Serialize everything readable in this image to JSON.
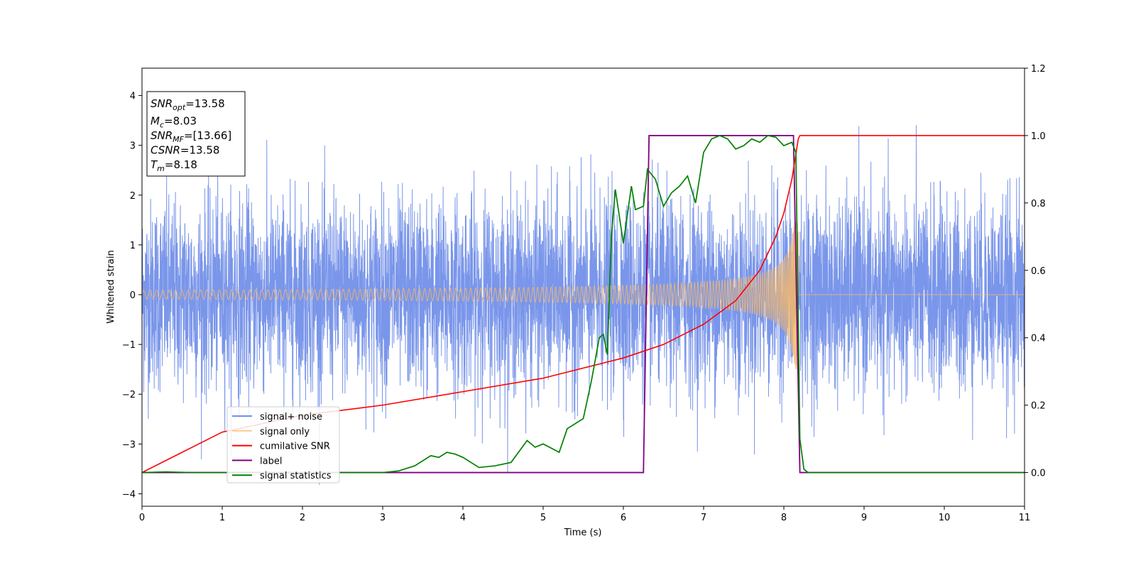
{
  "chart_data": {
    "type": "line",
    "xlabel": "Time (s)",
    "ylabel": "Whitened strain",
    "xlim": [
      0,
      11
    ],
    "ylim": [
      -4.25,
      4.55
    ],
    "y2lim": [
      -0.1,
      1.2
    ],
    "xticks": [
      0,
      1,
      2,
      3,
      4,
      5,
      6,
      7,
      8,
      9,
      10,
      11
    ],
    "yticks": [
      -4,
      -3,
      -2,
      -1,
      0,
      1,
      2,
      3,
      4
    ],
    "y2ticks": [
      "0.0",
      "0.2",
      "0.4",
      "0.6",
      "0.8",
      "1.0",
      "1.2"
    ],
    "legend_position": "lower-left",
    "annotation": {
      "lines": [
        {
          "var": "SNR",
          "sub": "opt",
          "value": "=13.58"
        },
        {
          "var": "M",
          "sub": "c",
          "value": "=8.03"
        },
        {
          "var": "SNR",
          "sub": "MF",
          "value": "=[13.66]"
        },
        {
          "var": "CSNR",
          "sub": "",
          "value": "=13.58"
        },
        {
          "var": "T",
          "sub": "m",
          "value": "=8.18"
        }
      ]
    },
    "series": [
      {
        "name": "signal+ noise",
        "color": "#4169e1",
        "axis": "left",
        "description_noise_std": 0.95,
        "x_range": [
          0,
          11
        ]
      },
      {
        "name": "signal only",
        "color": "#f5b96b",
        "axis": "left",
        "chirp_end_time": 8.18,
        "chirp_peak_amplitude": 1.55,
        "x_range": [
          0,
          11
        ]
      },
      {
        "name": "cumilative SNR",
        "color": "#ff0000",
        "axis": "right",
        "x": [
          0,
          1,
          2,
          3,
          4,
          5,
          6,
          6.5,
          7,
          7.4,
          7.7,
          7.9,
          8.0,
          8.1,
          8.18,
          8.2,
          11
        ],
        "y": [
          0.0,
          0.12,
          0.17,
          0.2,
          0.24,
          0.28,
          0.34,
          0.38,
          0.44,
          0.51,
          0.6,
          0.7,
          0.77,
          0.87,
          0.99,
          1.0,
          1.0
        ]
      },
      {
        "name": "label",
        "color": "#800080",
        "axis": "right",
        "x": [
          0,
          6.25,
          6.32,
          8.12,
          8.2,
          11
        ],
        "y": [
          0,
          0,
          1,
          1,
          0,
          0
        ]
      },
      {
        "name": "signal statistics",
        "color": "#008000",
        "axis": "right",
        "x": [
          0,
          0.3,
          0.6,
          1,
          2,
          3,
          3.2,
          3.4,
          3.6,
          3.7,
          3.8,
          3.9,
          4.0,
          4.2,
          4.4,
          4.6,
          4.8,
          4.9,
          5.0,
          5.2,
          5.3,
          5.5,
          5.6,
          5.7,
          5.75,
          5.8,
          5.85,
          5.9,
          6.0,
          6.1,
          6.15,
          6.25,
          6.3,
          6.4,
          6.5,
          6.6,
          6.7,
          6.8,
          6.9,
          7.0,
          7.1,
          7.2,
          7.3,
          7.4,
          7.5,
          7.6,
          7.7,
          7.8,
          7.9,
          8.0,
          8.1,
          8.15,
          8.2,
          8.25,
          8.3,
          11
        ],
        "y": [
          0,
          0.002,
          0.0,
          0.0,
          0.0,
          0.0,
          0.005,
          0.02,
          0.05,
          0.045,
          0.06,
          0.055,
          0.045,
          0.015,
          0.02,
          0.03,
          0.095,
          0.075,
          0.085,
          0.06,
          0.13,
          0.16,
          0.27,
          0.4,
          0.41,
          0.35,
          0.7,
          0.84,
          0.68,
          0.85,
          0.78,
          0.79,
          0.9,
          0.87,
          0.79,
          0.83,
          0.85,
          0.88,
          0.8,
          0.95,
          0.99,
          1.0,
          0.99,
          0.96,
          0.97,
          0.99,
          0.98,
          1.0,
          0.995,
          0.97,
          0.98,
          0.95,
          0.1,
          0.01,
          0.0,
          0.0
        ]
      }
    ]
  }
}
